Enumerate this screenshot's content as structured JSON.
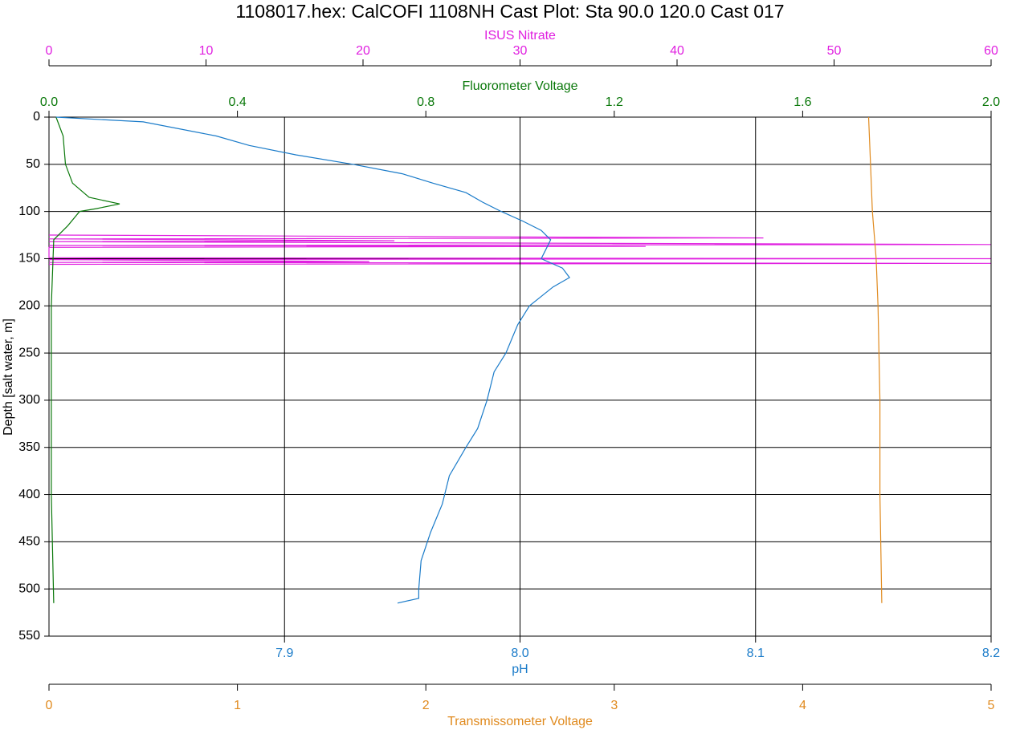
{
  "chart_data": {
    "type": "line",
    "title": "1108017.hex: CalCOFI 1108NH Cast Plot: Sta 90.0 120.0 Cast 017",
    "ylabel": "Depth [salt water, m]",
    "ylim": [
      0,
      550
    ],
    "invert_y": true,
    "yticks": [
      0,
      50,
      100,
      150,
      200,
      250,
      300,
      350,
      400,
      450,
      500,
      550
    ],
    "grid": true,
    "axes": [
      {
        "label": "ISUS Nitrate",
        "position": "top-outer",
        "color": "#e020e0",
        "lim": [
          0,
          60
        ],
        "ticks": [
          0,
          10,
          20,
          30,
          40,
          50,
          60
        ],
        "grid": false,
        "series": {
          "depth": [
            125,
            128,
            129,
            131,
            132,
            135,
            136,
            137,
            138,
            149,
            150,
            151,
            153,
            154,
            155,
            156
          ],
          "values": [
            0,
            45.5,
            0,
            22,
            0,
            60,
            0,
            38,
            0,
            0,
            60,
            0,
            20.4,
            0,
            60,
            0
          ]
        }
      },
      {
        "label": "Fluorometer Voltage",
        "position": "top-inner",
        "color": "#0a780a",
        "lim": [
          0,
          2
        ],
        "ticks": [
          {
            "value": 0,
            "label": "0.0"
          },
          0.4,
          0.8,
          1.2,
          1.6,
          {
            "value": 2,
            "label": "2.0"
          }
        ],
        "grid": false,
        "series": {
          "depth": [
            0,
            20,
            50,
            70,
            85,
            92,
            97,
            100,
            115,
            130,
            200,
            300,
            400,
            515
          ],
          "values": [
            0.015,
            0.03,
            0.035,
            0.05,
            0.085,
            0.15,
            0.1,
            0.065,
            0.04,
            0.01,
            0.005,
            0.005,
            0.005,
            0.01
          ]
        }
      },
      {
        "label": "pH",
        "position": "bottom-inner",
        "color": "#1a7bc9",
        "lim": [
          7.8,
          8.2
        ],
        "ticks": [
          7.9,
          {
            "value": 8,
            "label": "8.0"
          },
          8.1,
          8.2
        ],
        "grid": true,
        "series": {
          "depth": [
            0,
            5,
            20,
            30,
            40,
            50,
            60,
            70,
            80,
            90,
            100,
            110,
            120,
            130,
            140,
            150,
            160,
            170,
            180,
            200,
            220,
            250,
            270,
            300,
            330,
            350,
            380,
            410,
            440,
            470,
            500,
            510,
            515
          ],
          "values": [
            7.803,
            7.84,
            7.871,
            7.885,
            7.905,
            7.929,
            7.95,
            7.963,
            7.977,
            7.984,
            7.992,
            8.001,
            8.009,
            8.013,
            8.011,
            8.009,
            8.018,
            8.021,
            8.014,
            8.004,
            7.999,
            7.994,
            7.989,
            7.986,
            7.982,
            7.977,
            7.97,
            7.967,
            7.962,
            7.958,
            7.957,
            7.957,
            7.948
          ]
        }
      },
      {
        "label": "Transmissometer Voltage",
        "position": "bottom-outer",
        "color": "#e08a1e",
        "lim": [
          0,
          5
        ],
        "ticks": [
          0,
          1,
          2,
          3,
          4,
          5
        ],
        "grid": false,
        "series": {
          "depth": [
            0,
            50,
            100,
            150,
            200,
            300,
            400,
            515
          ],
          "values": [
            4.35,
            4.36,
            4.37,
            4.39,
            4.4,
            4.41,
            4.41,
            4.42
          ]
        }
      }
    ]
  }
}
